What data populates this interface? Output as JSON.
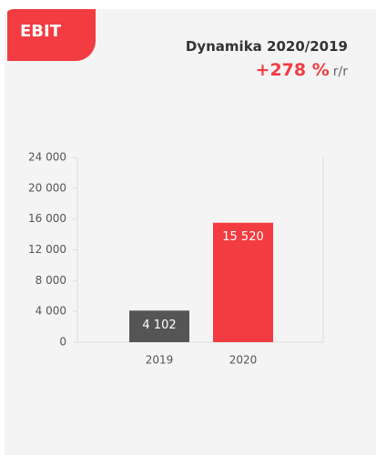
{
  "header": {
    "badge": "EBIT",
    "title": "Dynamika 2020/2019",
    "change": "+278 %",
    "change_unit": "r/r"
  },
  "chart_data": {
    "type": "bar",
    "categories": [
      "2019",
      "2020"
    ],
    "values": [
      4102,
      15520
    ],
    "value_labels": [
      "4 102",
      "15 520"
    ],
    "colors": [
      "#555555",
      "#f23c41"
    ],
    "ylim": [
      0,
      24000
    ],
    "yticks": [
      0,
      {
        "value": 4000,
        "label": "4 000"
      },
      {
        "value": 8000,
        "label": "8 000"
      },
      {
        "value": 12000,
        "label": "12 000"
      },
      {
        "value": 16000,
        "label": "16 000"
      },
      {
        "value": 20000,
        "label": "20 000"
      },
      {
        "value": 24000,
        "label": "24 000"
      }
    ],
    "grid": false
  }
}
